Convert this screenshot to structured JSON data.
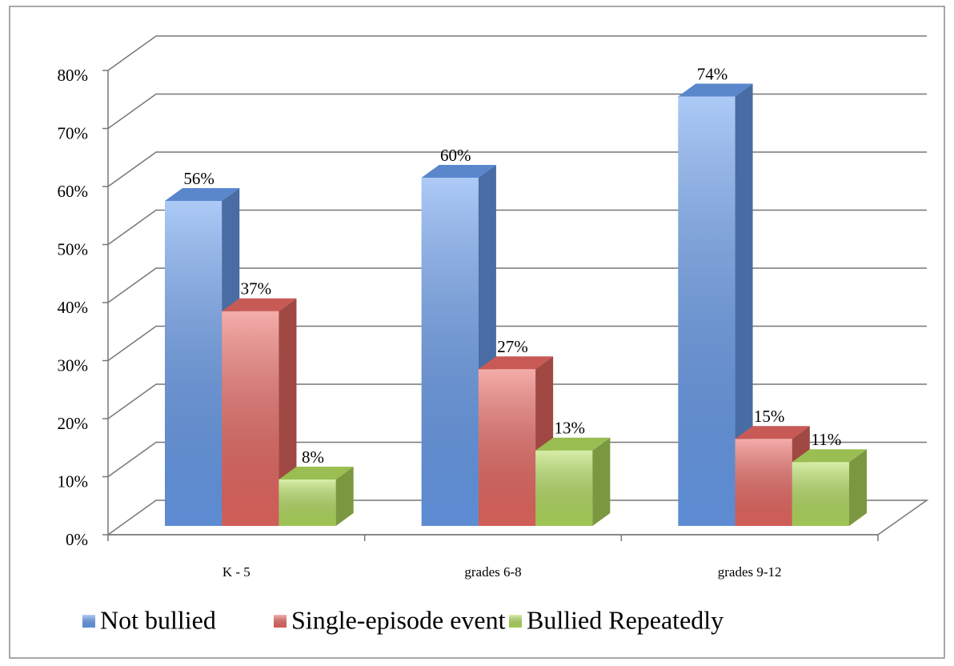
{
  "chart_data": {
    "type": "bar3d",
    "categories": [
      "K - 5",
      "grades 6-8",
      "grades 9-12"
    ],
    "series": [
      {
        "name": "Not bullied",
        "color": "#6a9ff0",
        "values": [
          56,
          60,
          74
        ],
        "value_labels": [
          "56%",
          "60%",
          "74%"
        ]
      },
      {
        "name": "Single-episode event",
        "color": "#ec6a64",
        "values": [
          37,
          27,
          15
        ],
        "value_labels": [
          "37%",
          "27%",
          "15%"
        ]
      },
      {
        "name": "Bullied Repeatedly",
        "color": "#b6e060",
        "values": [
          8,
          13,
          11
        ],
        "value_labels": [
          "8%",
          "13%",
          "11%"
        ]
      }
    ],
    "ylim": [
      0,
      80
    ],
    "yticks": [
      {
        "value": 0,
        "label": "0%"
      },
      {
        "value": 10,
        "label": "10%"
      },
      {
        "value": 20,
        "label": "20%"
      },
      {
        "value": 30,
        "label": "30%"
      },
      {
        "value": 40,
        "label": "40%"
      },
      {
        "value": 50,
        "label": "50%"
      },
      {
        "value": 60,
        "label": "60%"
      },
      {
        "value": 70,
        "label": "70%"
      },
      {
        "value": 80,
        "label": "80%"
      }
    ],
    "grid": true,
    "legend": "bottom"
  }
}
